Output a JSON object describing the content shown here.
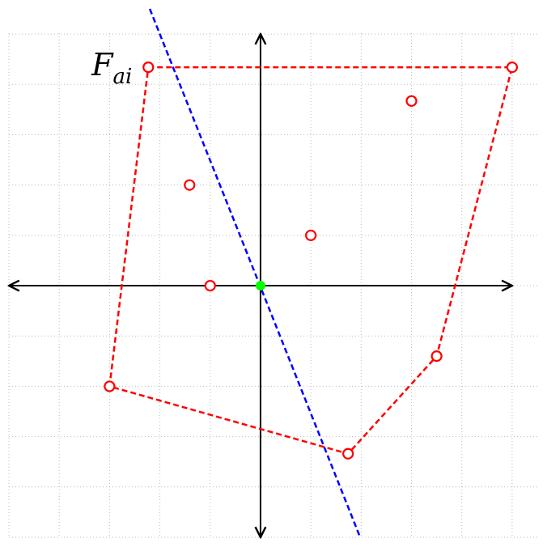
{
  "chart_data": {
    "type": "scatter",
    "annotation": {
      "text": "F",
      "subscript": "ai"
    },
    "x": [
      -2.23,
      5,
      3,
      -1.41,
      1,
      -1,
      3.5,
      -3,
      1.74
    ],
    "y": [
      4.34,
      4.34,
      3.67,
      2,
      1,
      0,
      -1.4,
      -2,
      -3.34
    ],
    "color": "#ff0000",
    "hull": {
      "x": [
        -2.23,
        5,
        3.5,
        1.74,
        -3
      ],
      "y": [
        4.34,
        4.34,
        -1.4,
        -3.34,
        -2
      ],
      "color": "#ff0000"
    },
    "line": {
      "x": [
        -2.2,
        1.98
      ],
      "y": [
        5.5,
        -5
      ],
      "color": "#0000ff"
    },
    "center": {
      "x": 0,
      "y": 0,
      "color": "#00ff00"
    },
    "xlim": [
      -5,
      5.5
    ],
    "ylim": [
      -5,
      5.5
    ],
    "xticks": [
      -5,
      -4,
      -3,
      -2,
      -1,
      0,
      1,
      2,
      3,
      4,
      5
    ],
    "yticks": [
      -5,
      -4,
      -3,
      -2,
      -1,
      0,
      1,
      2,
      3,
      4,
      5
    ],
    "grid": true
  }
}
